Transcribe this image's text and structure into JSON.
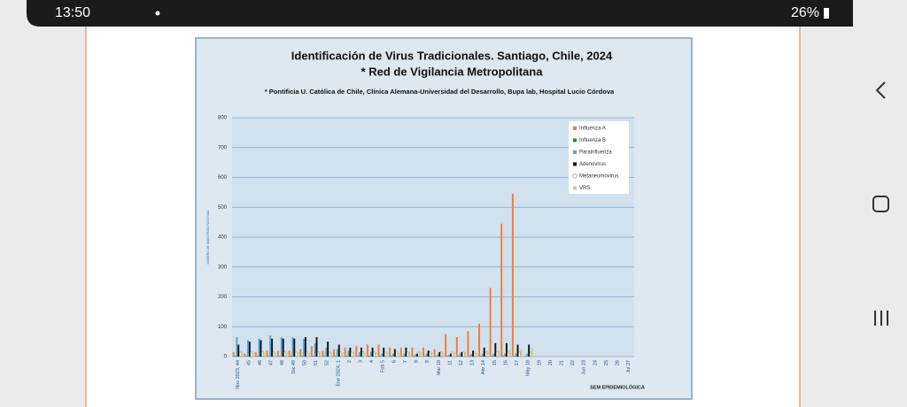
{
  "status_bar": {
    "time": "13:50",
    "battery": "26%"
  },
  "chart_data": {
    "type": "bar",
    "title": "Identificación de Virus Tradicionales. Santiago, Chile, 2024",
    "title_line2": "* Red de Vigilancia Metropolitana",
    "subtitle": "* Pontificia U. Católica de Chile, Clínica Alemana-Universidad del Desarrollo, Bupa lab, Hospital Lucio Córdova",
    "y_label": "NÚMERO DE MUESTRAS POSITIVAS",
    "x_label": "SEM EPIDEMIOLÓGICA",
    "categories": [
      "Nov 2023, 44",
      "45",
      "46",
      "47",
      "48",
      "Dic 49",
      "50",
      "51",
      "52",
      "Ene 2024, 1",
      "2",
      "3",
      "4",
      "Feb 5",
      "6",
      "7",
      "8",
      "9",
      "Mar 10",
      "11",
      "12",
      "13",
      "Abr 14",
      "15",
      "16",
      "17",
      "May 18",
      "19",
      "20",
      "21",
      "22",
      "Jun 23",
      "24",
      "25",
      "26",
      "Jul 27"
    ],
    "series": [
      {
        "name": "Influenza A",
        "color": "#ed7d31",
        "values": [
          15,
          10,
          15,
          20,
          20,
          20,
          25,
          35,
          20,
          25,
          30,
          35,
          40,
          40,
          30,
          30,
          30,
          30,
          25,
          75,
          65,
          85,
          110,
          230,
          445,
          545,
          null,
          null,
          null,
          null,
          null,
          null,
          null,
          null,
          null,
          null
        ]
      },
      {
        "name": "Influenza B",
        "color": "#2e8b2e",
        "values": [
          2,
          2,
          2,
          2,
          2,
          2,
          2,
          2,
          2,
          2,
          2,
          2,
          2,
          2,
          2,
          2,
          2,
          2,
          2,
          2,
          2,
          2,
          2,
          2,
          2,
          2,
          2,
          null,
          null,
          null,
          null,
          null,
          null,
          null,
          null,
          null
        ]
      },
      {
        "name": "Parainfluenza",
        "color": "#4ea5d9",
        "values": [
          65,
          55,
          60,
          70,
          65,
          65,
          60,
          45,
          30,
          25,
          20,
          15,
          15,
          10,
          10,
          10,
          8,
          10,
          8,
          5,
          10,
          8,
          10,
          10,
          10,
          10,
          10,
          null,
          null,
          null,
          null,
          null,
          null,
          null,
          null,
          null
        ]
      },
      {
        "name": "Adenovirus",
        "color": "#111111",
        "values": [
          40,
          50,
          55,
          60,
          60,
          60,
          65,
          65,
          50,
          40,
          30,
          30,
          30,
          30,
          25,
          30,
          10,
          20,
          15,
          10,
          15,
          20,
          30,
          45,
          45,
          40,
          40,
          null,
          null,
          null,
          null,
          null,
          null,
          null,
          null,
          null
        ]
      },
      {
        "name": "Metaneumovirus",
        "color": "#ffffff",
        "values": [
          15,
          15,
          15,
          15,
          15,
          15,
          15,
          15,
          15,
          15,
          15,
          15,
          15,
          15,
          15,
          15,
          15,
          15,
          15,
          15,
          15,
          15,
          15,
          15,
          15,
          15,
          15,
          null,
          null,
          null,
          null,
          null,
          null,
          null,
          null,
          null
        ]
      },
      {
        "name": "VRS",
        "color": "#d8c88a",
        "values": [
          15,
          15,
          15,
          15,
          15,
          15,
          15,
          15,
          15,
          15,
          15,
          15,
          15,
          15,
          15,
          15,
          15,
          15,
          15,
          15,
          15,
          15,
          20,
          20,
          25,
          25,
          30,
          null,
          null,
          null,
          null,
          null,
          null,
          null,
          null,
          null
        ]
      }
    ],
    "ylim": [
      0,
      800
    ],
    "yticks": [
      0,
      100,
      200,
      300,
      400,
      500,
      600,
      700,
      800
    ],
    "grid": true,
    "legend": "upper right"
  }
}
